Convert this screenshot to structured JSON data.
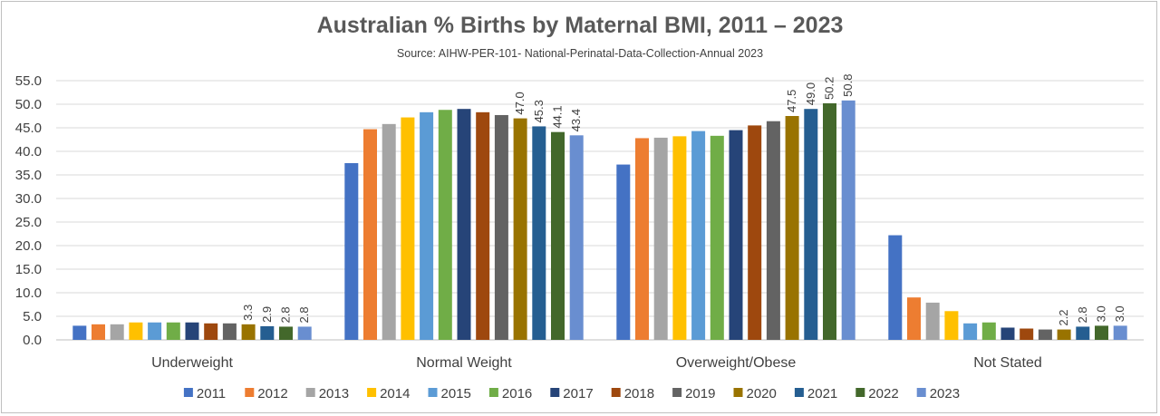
{
  "chart_data": {
    "type": "bar",
    "title": "Australian % Births by Maternal BMI, 2011 – 2023",
    "subtitle": "Source: AIHW-PER-101- National-Perinatal-Data-Collection-Annual 2023",
    "categories": [
      "Underweight",
      "Normal Weight",
      "Overweight/Obese",
      "Not Stated"
    ],
    "ylim": [
      0,
      55
    ],
    "yticks": [
      "0.0",
      "5.0",
      "10.0",
      "15.0",
      "20.0",
      "25.0",
      "30.0",
      "35.0",
      "40.0",
      "45.0",
      "50.0",
      "55.0"
    ],
    "ytick_values": [
      0,
      5,
      10,
      15,
      20,
      25,
      30,
      35,
      40,
      45,
      50,
      55
    ],
    "xlabel": "",
    "ylabel": "",
    "legend_position": "bottom",
    "grid": true,
    "series": [
      {
        "name": "2011",
        "color": "#4472c4",
        "values": [
          3.0,
          37.5,
          37.2,
          22.2
        ],
        "labels": [
          "",
          "",
          "",
          ""
        ]
      },
      {
        "name": "2012",
        "color": "#ed7d31",
        "values": [
          3.3,
          44.7,
          42.8,
          9.0
        ],
        "labels": [
          "",
          "",
          "",
          ""
        ]
      },
      {
        "name": "2013",
        "color": "#a5a5a5",
        "values": [
          3.3,
          45.8,
          42.9,
          7.9
        ],
        "labels": [
          "",
          "",
          "",
          ""
        ]
      },
      {
        "name": "2014",
        "color": "#ffc000",
        "values": [
          3.7,
          47.2,
          43.2,
          6.1
        ],
        "labels": [
          "",
          "",
          "",
          ""
        ]
      },
      {
        "name": "2015",
        "color": "#5b9bd5",
        "values": [
          3.7,
          48.3,
          44.3,
          3.5
        ],
        "labels": [
          "",
          "",
          "",
          ""
        ]
      },
      {
        "name": "2016",
        "color": "#70ad47",
        "values": [
          3.7,
          48.8,
          43.3,
          3.7
        ],
        "labels": [
          "",
          "",
          "",
          ""
        ]
      },
      {
        "name": "2017",
        "color": "#264478",
        "values": [
          3.7,
          49.0,
          44.5,
          2.6
        ],
        "labels": [
          "",
          "",
          "",
          ""
        ]
      },
      {
        "name": "2018",
        "color": "#9e480e",
        "values": [
          3.5,
          48.3,
          45.5,
          2.4
        ],
        "labels": [
          "",
          "",
          "",
          ""
        ]
      },
      {
        "name": "2019",
        "color": "#636363",
        "values": [
          3.5,
          47.7,
          46.4,
          2.2
        ],
        "labels": [
          "",
          "",
          "",
          ""
        ]
      },
      {
        "name": "2020",
        "color": "#997300",
        "values": [
          3.3,
          47.0,
          47.5,
          2.2
        ],
        "labels": [
          "3.3",
          "47.0",
          "47.5",
          "2.2"
        ]
      },
      {
        "name": "2021",
        "color": "#255e91",
        "values": [
          2.9,
          45.3,
          49.0,
          2.8
        ],
        "labels": [
          "2.9",
          "45.3",
          "49.0",
          "2.8"
        ]
      },
      {
        "name": "2022",
        "color": "#43682b",
        "values": [
          2.8,
          44.1,
          50.2,
          3.0
        ],
        "labels": [
          "2.8",
          "44.1",
          "50.2",
          "3.0"
        ]
      },
      {
        "name": "2023",
        "color": "#698ed0",
        "values": [
          2.8,
          43.4,
          50.8,
          3.0
        ],
        "labels": [
          "2.8",
          "43.4",
          "50.8",
          "3.0"
        ]
      }
    ]
  }
}
